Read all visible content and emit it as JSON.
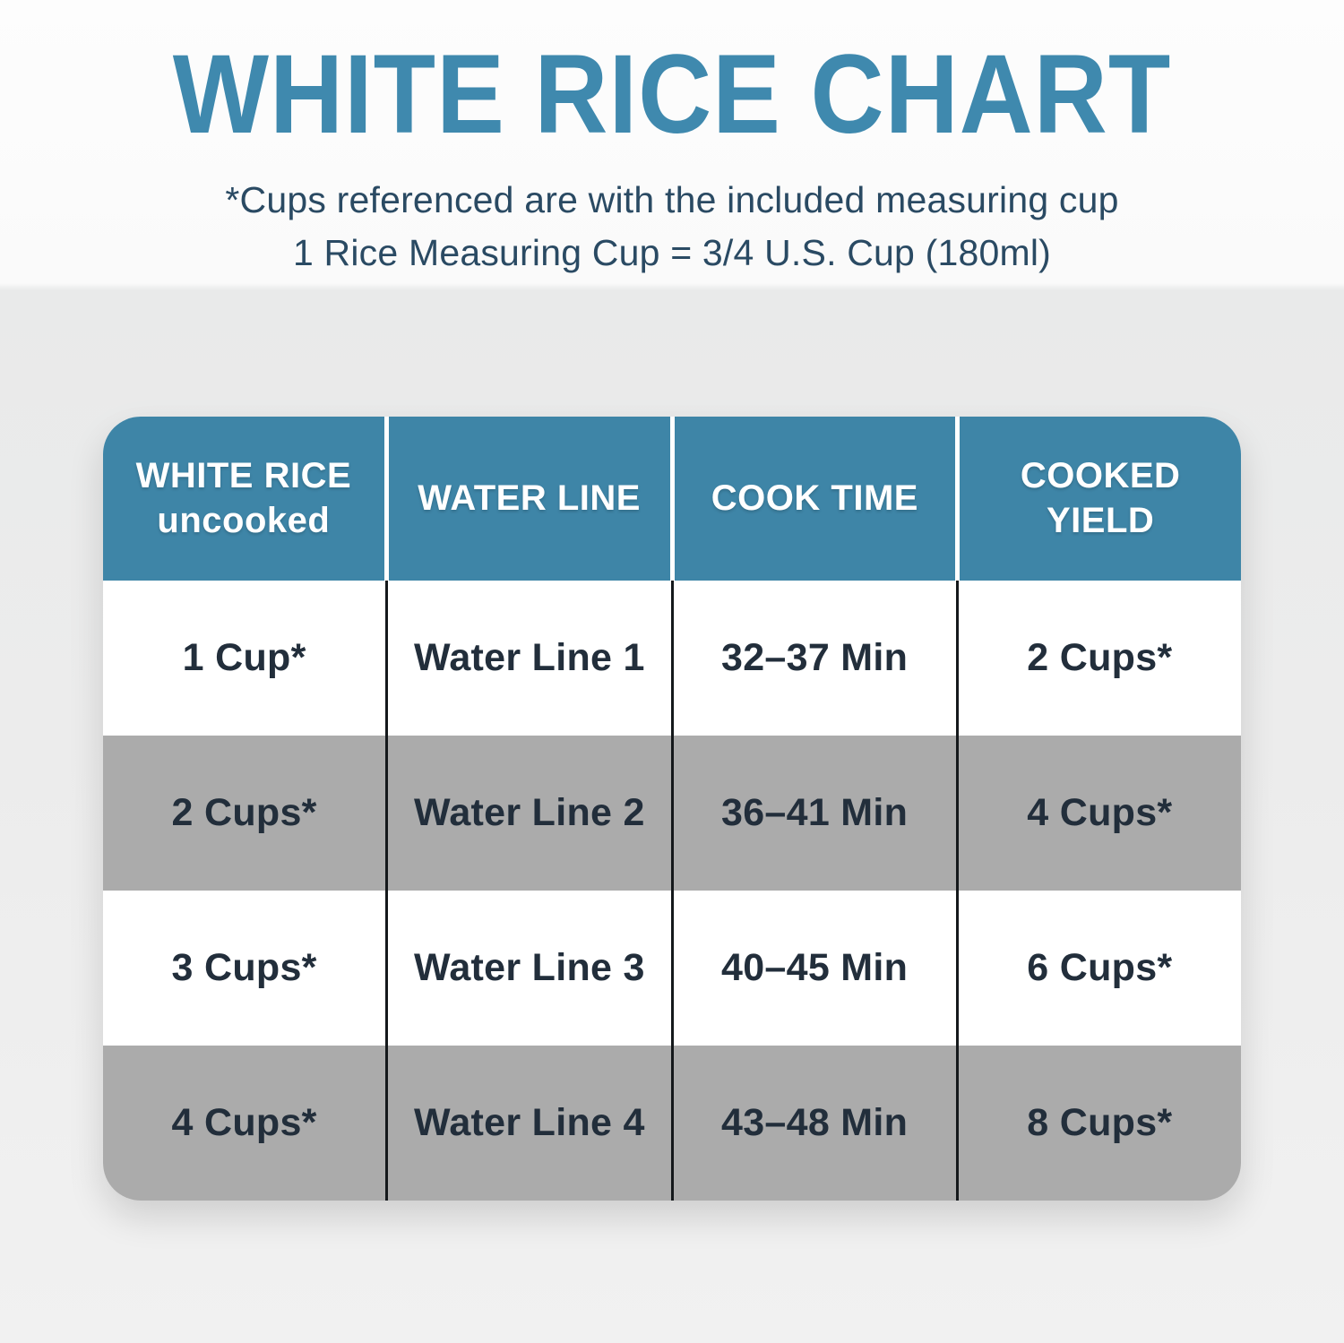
{
  "page": {
    "title": "WHITE RICE CHART",
    "subtitle_line1": "*Cups referenced are with the included measuring cup",
    "subtitle_line2": "1 Rice Measuring Cup = 3/4 U.S. Cup (180ml)"
  },
  "colors": {
    "accent_teal": "#3F89AE",
    "header_background": "#3E85A7",
    "header_text": "#FFFFFF",
    "row_white": "#FFFFFF",
    "row_gray": "#ABABAB",
    "cell_text": "#222E3B",
    "subtitle_text": "#2A4A63",
    "body_divider": "#14181B"
  },
  "table": {
    "headers": [
      "WHITE RICE\nuncooked",
      "WATER LINE",
      "COOK TIME",
      "COOKED\nYIELD"
    ],
    "rows": [
      {
        "cells": [
          "1 Cup*",
          "Water Line 1",
          "32–37 Min",
          "2 Cups*"
        ]
      },
      {
        "cells": [
          "2 Cups*",
          "Water Line 2",
          "36–41 Min",
          "4 Cups*"
        ]
      },
      {
        "cells": [
          "3 Cups*",
          "Water Line 3",
          "40–45 Min",
          "6 Cups*"
        ]
      },
      {
        "cells": [
          "4 Cups*",
          "Water Line 4",
          "43–48 Min",
          "8 Cups*"
        ]
      }
    ]
  },
  "chart_data": {
    "type": "table",
    "title": "WHITE RICE CHART",
    "notes": [
      "*Cups referenced are with the included measuring cup",
      "1 Rice Measuring Cup = 3/4 U.S. Cup (180ml)"
    ],
    "columns": [
      "WHITE RICE uncooked",
      "WATER LINE",
      "COOK TIME",
      "COOKED YIELD"
    ],
    "rows": [
      [
        "1 Cup*",
        "Water Line 1",
        "32–37 Min",
        "2 Cups*"
      ],
      [
        "2 Cups*",
        "Water Line 2",
        "36–41 Min",
        "4 Cups*"
      ],
      [
        "3 Cups*",
        "Water Line 3",
        "40–45 Min",
        "6 Cups*"
      ],
      [
        "4 Cups*",
        "Water Line 4",
        "43–48 Min",
        "8 Cups*"
      ]
    ],
    "layout_hints": {
      "header_style": "teal band, white text, white column dividers",
      "body_style": "alternating white / gray rows, black column dividers, rounded outer corners"
    }
  }
}
